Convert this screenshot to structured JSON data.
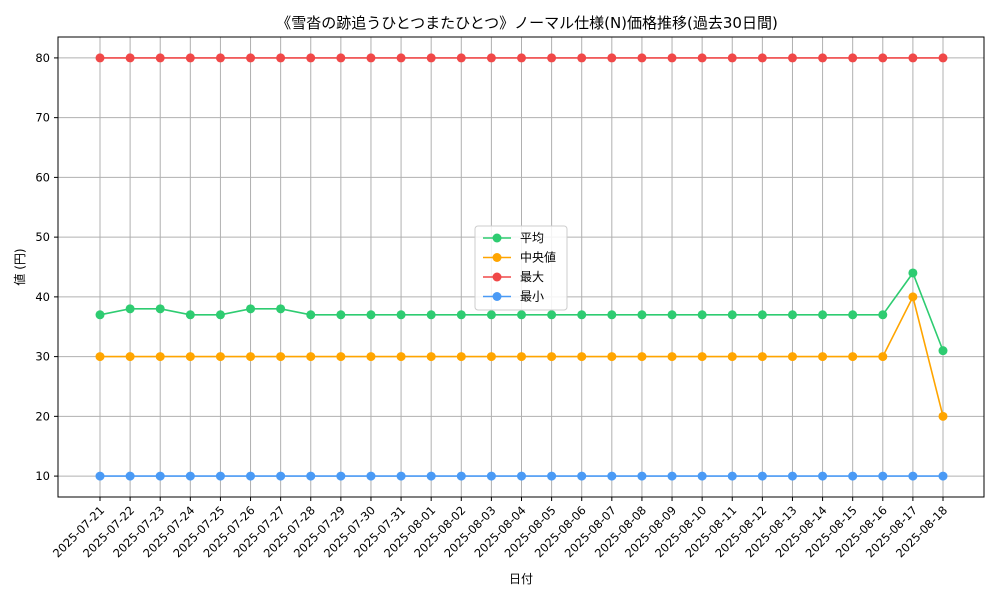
{
  "chart_data": {
    "type": "line",
    "title": "《雪沓の跡追うひとつまたひとつ》ノーマル仕様(N)価格推移(過去30日間)",
    "xlabel": "日付",
    "ylabel": "値 (円)",
    "ylim": [
      6.5,
      83.5
    ],
    "yticks": [
      10,
      20,
      30,
      40,
      50,
      60,
      70,
      80
    ],
    "grid": true,
    "legend_position": "center",
    "categories": [
      "2025-07-21",
      "2025-07-22",
      "2025-07-23",
      "2025-07-24",
      "2025-07-25",
      "2025-07-26",
      "2025-07-27",
      "2025-07-28",
      "2025-07-29",
      "2025-07-30",
      "2025-07-31",
      "2025-08-01",
      "2025-08-02",
      "2025-08-03",
      "2025-08-04",
      "2025-08-05",
      "2025-08-06",
      "2025-08-07",
      "2025-08-08",
      "2025-08-09",
      "2025-08-10",
      "2025-08-11",
      "2025-08-12",
      "2025-08-13",
      "2025-08-14",
      "2025-08-15",
      "2025-08-16",
      "2025-08-17",
      "2025-08-18"
    ],
    "series": [
      {
        "name": "平均",
        "color": "#2ecc71",
        "values": [
          37,
          38,
          38,
          37,
          37,
          38,
          38,
          37,
          37,
          37,
          37,
          37,
          37,
          37,
          37,
          37,
          37,
          37,
          37,
          37,
          37,
          37,
          37,
          37,
          37,
          37,
          37,
          44,
          31
        ]
      },
      {
        "name": "中央値",
        "color": "#ffa500",
        "values": [
          30,
          30,
          30,
          30,
          30,
          30,
          30,
          30,
          30,
          30,
          30,
          30,
          30,
          30,
          30,
          30,
          30,
          30,
          30,
          30,
          30,
          30,
          30,
          30,
          30,
          30,
          30,
          40,
          20
        ]
      },
      {
        "name": "最大",
        "color": "#f04848",
        "values": [
          80,
          80,
          80,
          80,
          80,
          80,
          80,
          80,
          80,
          80,
          80,
          80,
          80,
          80,
          80,
          80,
          80,
          80,
          80,
          80,
          80,
          80,
          80,
          80,
          80,
          80,
          80,
          80,
          80
        ]
      },
      {
        "name": "最小",
        "color": "#4a9af5",
        "values": [
          10,
          10,
          10,
          10,
          10,
          10,
          10,
          10,
          10,
          10,
          10,
          10,
          10,
          10,
          10,
          10,
          10,
          10,
          10,
          10,
          10,
          10,
          10,
          10,
          10,
          10,
          10,
          10,
          10
        ]
      }
    ]
  }
}
